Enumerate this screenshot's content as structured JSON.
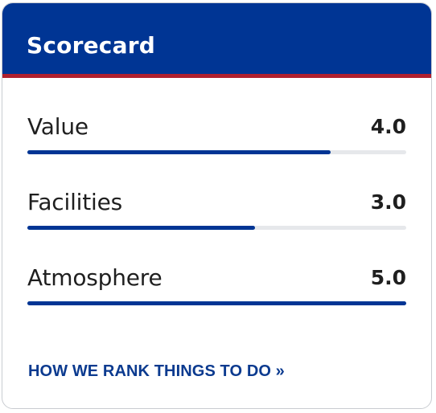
{
  "card": {
    "title": "Scorecard",
    "colors": {
      "header_bg": "#003594",
      "header_accent": "#b0202e",
      "bar_fill": "#003594",
      "bar_track": "#e6e8eb",
      "link": "#0b3a8f"
    }
  },
  "scores": [
    {
      "label": "Value",
      "score": "4.0",
      "fraction": 0.8
    },
    {
      "label": "Facilities",
      "score": "3.0",
      "fraction": 0.6
    },
    {
      "label": "Atmosphere",
      "score": "5.0",
      "fraction": 1.0
    }
  ],
  "footer": {
    "link_text": "HOW WE RANK THINGS TO DO »"
  }
}
